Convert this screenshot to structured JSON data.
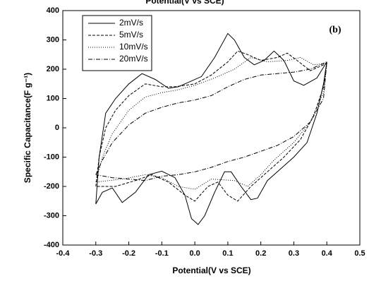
{
  "chart_data": {
    "type": "line",
    "top_label": "Potential(V vs SCE)",
    "xlabel": "Potential(V vs SCE)",
    "ylabel": "Specific Capacitance(F g⁻¹)",
    "annotation": "(b)",
    "xlim": [
      -0.4,
      0.5
    ],
    "xticks": [
      -0.4,
      -0.3,
      -0.2,
      -0.1,
      {
        "value": 0,
        "label": "0.0"
      },
      0.1,
      0.2,
      0.3,
      0.4,
      0.5
    ],
    "ylim": [
      -400,
      400
    ],
    "yticks": [
      -400,
      -300,
      -200,
      -100,
      0,
      100,
      200,
      300,
      400
    ],
    "legend": "upper left",
    "series": [
      {
        "name": "2mV/s",
        "color": "#000000",
        "dash": "solid",
        "x": [
          -0.3,
          -0.29,
          -0.27,
          -0.24,
          -0.2,
          -0.16,
          -0.12,
          -0.08,
          -0.05,
          -0.02,
          0.02,
          0.06,
          0.1,
          0.12,
          0.15,
          0.18,
          0.21,
          0.24,
          0.27,
          0.3,
          0.33,
          0.37,
          0.4,
          0.39,
          0.37,
          0.34,
          0.3,
          0.26,
          0.22,
          0.19,
          0.17,
          0.14,
          0.11,
          0.09,
          0.06,
          0.03,
          0.01,
          -0.01,
          -0.03,
          -0.06,
          -0.1,
          -0.14,
          -0.18,
          -0.22,
          -0.25,
          -0.28,
          -0.3
        ],
        "values": [
          -260,
          -100,
          50,
          100,
          150,
          185,
          165,
          135,
          140,
          155,
          175,
          240,
          322,
          300,
          240,
          215,
          230,
          262,
          230,
          160,
          145,
          170,
          225,
          150,
          50,
          -50,
          -100,
          -140,
          -180,
          -240,
          -245,
          -200,
          -150,
          -150,
          -220,
          -300,
          -330,
          -310,
          -230,
          -170,
          -148,
          -160,
          -220,
          -255,
          -205,
          -220,
          -260
        ]
      },
      {
        "name": "5mV/s",
        "color": "#000000",
        "dash": "dashed",
        "x": [
          -0.3,
          -0.29,
          -0.27,
          -0.24,
          -0.2,
          -0.15,
          -0.1,
          -0.06,
          0,
          0.05,
          0.1,
          0.13,
          0.16,
          0.2,
          0.25,
          0.28,
          0.31,
          0.35,
          0.4,
          0.39,
          0.36,
          0.32,
          0.27,
          0.22,
          0.17,
          0.13,
          0.1,
          0.07,
          0.04,
          0,
          -0.03,
          -0.08,
          -0.13,
          -0.18,
          -0.24,
          -0.3
        ],
        "values": [
          -200,
          -100,
          0,
          60,
          110,
          150,
          140,
          140,
          150,
          180,
          225,
          262,
          250,
          230,
          240,
          255,
          230,
          195,
          220,
          140,
          40,
          -40,
          -100,
          -150,
          -200,
          -250,
          -230,
          -185,
          -200,
          -250,
          -230,
          -185,
          -160,
          -180,
          -200,
          -200
        ]
      },
      {
        "name": "10mV/s",
        "color": "#000000",
        "dash": "dotted",
        "x": [
          -0.3,
          -0.28,
          -0.25,
          -0.2,
          -0.15,
          -0.1,
          -0.05,
          0,
          0.06,
          0.12,
          0.17,
          0.22,
          0.28,
          0.32,
          0.36,
          0.4,
          0.39,
          0.35,
          0.3,
          0.24,
          0.2,
          0.16,
          0.12,
          0.05,
          0,
          -0.05,
          -0.1,
          -0.15,
          -0.22,
          -0.3
        ],
        "values": [
          -185,
          -100,
          -20,
          60,
          105,
          120,
          130,
          145,
          170,
          200,
          240,
          225,
          230,
          240,
          215,
          220,
          120,
          20,
          -50,
          -110,
          -160,
          -200,
          -180,
          -175,
          -210,
          -200,
          -170,
          -160,
          -175,
          -185
        ]
      },
      {
        "name": "20mV/s",
        "color": "#000000",
        "dash": "dashdot",
        "x": [
          -0.3,
          -0.28,
          -0.25,
          -0.2,
          -0.15,
          -0.1,
          -0.05,
          0,
          0.05,
          0.1,
          0.15,
          0.2,
          0.25,
          0.3,
          0.35,
          0.4,
          0.39,
          0.35,
          0.3,
          0.25,
          0.2,
          0.15,
          0.1,
          0.05,
          0,
          -0.05,
          -0.1,
          -0.15,
          -0.2,
          -0.25,
          -0.3
        ],
        "values": [
          -160,
          -110,
          -50,
          10,
          50,
          70,
          85,
          95,
          110,
          140,
          165,
          180,
          185,
          190,
          200,
          225,
          100,
          20,
          -30,
          -60,
          -80,
          -100,
          -115,
          -135,
          -150,
          -160,
          -165,
          -180,
          -175,
          -170,
          -160
        ]
      }
    ]
  }
}
